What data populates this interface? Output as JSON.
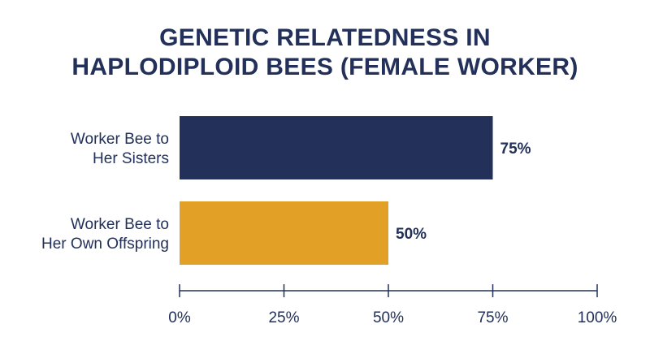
{
  "title": {
    "line1": "GENETIC RELATEDNESS IN",
    "line2_bold": "HAPLODIPLOID",
    "line2_rest": " BEES (FEMALE WORKER)"
  },
  "colors": {
    "text": "#22305a",
    "axis": "#22305a"
  },
  "chart_data": {
    "type": "bar",
    "orientation": "horizontal",
    "categories": [
      [
        "Worker Bee to",
        "Her Sisters"
      ],
      [
        "Worker Bee to",
        "Her Own Offspring"
      ]
    ],
    "values": [
      75,
      50
    ],
    "value_labels": [
      "75%",
      "50%"
    ],
    "bar_colors": [
      "#22305a",
      "#e3a027"
    ],
    "xlim": [
      0,
      100
    ],
    "ticks": [
      0,
      25,
      50,
      75,
      100
    ],
    "tick_labels": [
      "0%",
      "25%",
      "50%",
      "75%",
      "100%"
    ],
    "grid": false,
    "legend": "none"
  }
}
